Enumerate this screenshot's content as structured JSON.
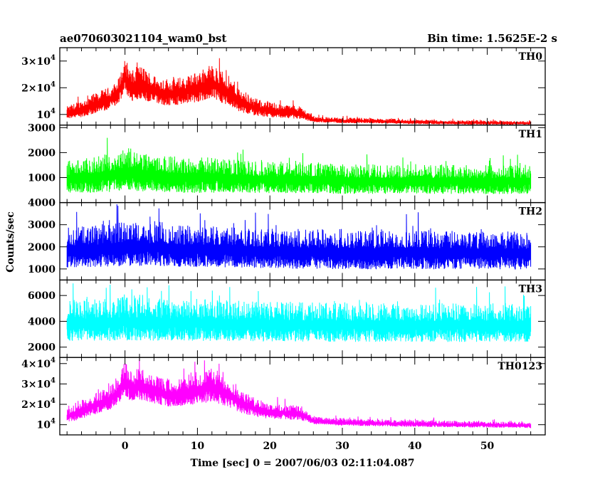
{
  "chart_data": {
    "type": "line",
    "title": "ae070603021104_wam0_bst",
    "subtitle": "Bin time: 1.5625E-2 s",
    "xlabel": "Time [sec] 0 = 2007/06/03 02:11:04.087",
    "ylabel": "Counts/sec",
    "xlim": [
      -9,
      58
    ],
    "x_ticks": [
      0,
      10,
      20,
      30,
      40,
      50
    ],
    "grid": false,
    "panels": [
      {
        "name": "TH0",
        "color": "#ff0000",
        "ylim": [
          6000,
          35000
        ],
        "y_ticks": [
          {
            "value": 10000,
            "mant": "10",
            "exp": "4"
          },
          {
            "value": 20000,
            "mant": "2×10",
            "exp": "4"
          },
          {
            "value": 30000,
            "mant": "3×10",
            "exp": "4"
          }
        ],
        "x": [
          -8,
          -6,
          -4,
          -2,
          -1,
          0,
          1,
          2,
          4,
          6,
          8,
          10,
          12,
          14,
          16,
          18,
          20,
          22,
          24,
          25,
          26,
          28,
          30,
          35,
          40,
          45,
          50,
          55,
          56
        ],
        "y": [
          10500,
          12000,
          14000,
          16000,
          18000,
          24000,
          20000,
          22000,
          19000,
          18000,
          18500,
          20000,
          22000,
          19000,
          15000,
          12500,
          11500,
          11000,
          10800,
          9500,
          8200,
          7900,
          7700,
          7500,
          7200,
          7000,
          6900,
          6800,
          6700
        ],
        "spread": [
          1800,
          2500,
          3000,
          3200,
          3500,
          5000,
          4500,
          5000,
          4200,
          4000,
          4000,
          4500,
          5000,
          4500,
          3500,
          2500,
          2200,
          2000,
          2000,
          1400,
          900,
          800,
          800,
          700,
          700,
          600,
          600,
          500,
          500
        ]
      },
      {
        "name": "TH1",
        "color": "#00ff00",
        "ylim": [
          0,
          3100
        ],
        "y_ticks": [
          {
            "value": 1000,
            "mant": "1000",
            "exp": ""
          },
          {
            "value": 2000,
            "mant": "2000",
            "exp": ""
          },
          {
            "value": 3000,
            "mant": "3000",
            "exp": ""
          }
        ],
        "x": [
          -8,
          -4,
          0,
          4,
          8,
          12,
          16,
          20,
          25,
          30,
          40,
          50,
          56
        ],
        "y": [
          1000,
          1050,
          1250,
          1100,
          1050,
          1050,
          1000,
          950,
          950,
          900,
          900,
          880,
          880
        ],
        "spread": [
          500,
          550,
          650,
          550,
          550,
          550,
          500,
          480,
          480,
          460,
          460,
          450,
          450
        ]
      },
      {
        "name": "TH2",
        "color": "#0000ff",
        "ylim": [
          500,
          4000
        ],
        "y_ticks": [
          {
            "value": 1000,
            "mant": "1000",
            "exp": ""
          },
          {
            "value": 2000,
            "mant": "2000",
            "exp": ""
          },
          {
            "value": 3000,
            "mant": "3000",
            "exp": ""
          },
          {
            "value": 4000,
            "mant": "4000",
            "exp": ""
          }
        ],
        "x": [
          -8,
          -4,
          0,
          4,
          8,
          12,
          16,
          20,
          30,
          40,
          50,
          56
        ],
        "y": [
          1900,
          1950,
          2050,
          2000,
          1950,
          1950,
          1900,
          1850,
          1800,
          1800,
          1780,
          1780
        ],
        "spread": [
          700,
          720,
          760,
          730,
          720,
          720,
          700,
          690,
          680,
          680,
          670,
          670
        ]
      },
      {
        "name": "TH3",
        "color": "#00ffff",
        "ylim": [
          1200,
          7200
        ],
        "y_ticks": [
          {
            "value": 2000,
            "mant": "2000",
            "exp": ""
          },
          {
            "value": 4000,
            "mant": "4000",
            "exp": ""
          },
          {
            "value": 6000,
            "mant": "6000",
            "exp": ""
          }
        ],
        "x": [
          -8,
          -4,
          0,
          4,
          8,
          12,
          16,
          20,
          30,
          40,
          50,
          56
        ],
        "y": [
          3900,
          3950,
          4050,
          4000,
          3950,
          3950,
          3900,
          3850,
          3800,
          3800,
          3780,
          3780
        ],
        "spread": [
          1200,
          1250,
          1300,
          1250,
          1230,
          1230,
          1200,
          1180,
          1160,
          1160,
          1150,
          1150
        ]
      },
      {
        "name": "TH0123",
        "color": "#ff00ff",
        "ylim": [
          5000,
          43000
        ],
        "y_ticks": [
          {
            "value": 10000,
            "mant": "10",
            "exp": "4"
          },
          {
            "value": 20000,
            "mant": "2×10",
            "exp": "4"
          },
          {
            "value": 30000,
            "mant": "3×10",
            "exp": "4"
          },
          {
            "value": 40000,
            "mant": "4×10",
            "exp": "4"
          }
        ],
        "x": [
          -8,
          -6,
          -4,
          -2,
          -1,
          0,
          1,
          2,
          4,
          6,
          8,
          10,
          12,
          14,
          16,
          18,
          20,
          22,
          24,
          25,
          26,
          28,
          30,
          35,
          40,
          45,
          50,
          55,
          56
        ],
        "y": [
          14000,
          17000,
          20000,
          23000,
          26000,
          32000,
          28000,
          30000,
          27000,
          25000,
          25500,
          27000,
          29000,
          26000,
          21000,
          18000,
          16500,
          16000,
          15500,
          14000,
          12000,
          11500,
          11200,
          10800,
          10500,
          10200,
          10000,
          9800,
          9600
        ],
        "spread": [
          2500,
          3500,
          4000,
          4500,
          5000,
          6500,
          6000,
          6500,
          5500,
          5200,
          5200,
          5800,
          6500,
          5800,
          4500,
          3500,
          3000,
          2800,
          2700,
          2000,
          1500,
          1400,
          1400,
          1300,
          1300,
          1200,
          1200,
          1100,
          1100
        ]
      }
    ]
  }
}
